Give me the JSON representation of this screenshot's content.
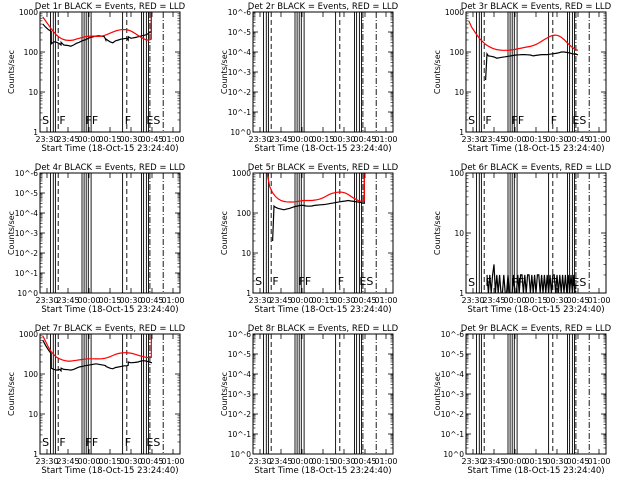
{
  "colors": {
    "events": "#000000",
    "lld": "#ff0000",
    "axes": "#000000"
  },
  "common": {
    "xlabel": "Start Time (18-Oct-15 23:24:40)",
    "ylabel": "Counts/sec",
    "xtick_labels": [
      "23:30",
      "23:45",
      "00:00",
      "00:15",
      "00:30",
      "00:45",
      "01:00"
    ],
    "xrange_min": [
      0,
      100
    ],
    "xtick_min": [
      5,
      20,
      35,
      50,
      65,
      80,
      95
    ],
    "flags": [
      "S",
      "F",
      "FF",
      "F",
      "ES"
    ]
  },
  "chart_data": [
    {
      "type": "line",
      "title": "Det 1r BLACK = Events, RED = LLD",
      "ytick_labels": [
        "1",
        "10",
        "100",
        "1000"
      ],
      "ylog": [
        0,
        3
      ],
      "flag_y": 3.0,
      "series": [
        {
          "name": "Events",
          "color": "#000000",
          "x": [
            2,
            4,
            6,
            8,
            8.1,
            10,
            12,
            14,
            15,
            15.1,
            17,
            20,
            22,
            24,
            26,
            28,
            30,
            32,
            34,
            36,
            38,
            40,
            42,
            44,
            46,
            47,
            47.1,
            50,
            52,
            54,
            56,
            58,
            60,
            62,
            63,
            63.1,
            65,
            68,
            70,
            72,
            74,
            76,
            78,
            79.5,
            79.6,
            80
          ],
          "y": [
            500,
            420,
            360,
            330,
            160,
            180,
            175,
            160,
            150,
            175,
            150,
            145,
            140,
            150,
            165,
            175,
            190,
            200,
            215,
            230,
            240,
            250,
            255,
            250,
            240,
            200,
            210,
            180,
            170,
            190,
            200,
            210,
            215,
            220,
            200,
            240,
            220,
            230,
            240,
            250,
            260,
            270,
            300,
            320,
            1000,
            1000
          ]
        },
        {
          "name": "LLD",
          "color": "#ff0000",
          "x": [
            2,
            4,
            6,
            8,
            10,
            12,
            14,
            16,
            18,
            20,
            22,
            24,
            26,
            28,
            30,
            32,
            34,
            36,
            38,
            40,
            42,
            44,
            46,
            48,
            50,
            52,
            54,
            56,
            58,
            60,
            62,
            64,
            66,
            68,
            70,
            72,
            74,
            76,
            78,
            79.5,
            79.6,
            80
          ],
          "y": [
            750,
            600,
            480,
            380,
            310,
            260,
            230,
            210,
            200,
            195,
            195,
            200,
            210,
            220,
            230,
            240,
            245,
            250,
            250,
            245,
            245,
            250,
            260,
            275,
            295,
            315,
            335,
            350,
            360,
            365,
            360,
            345,
            320,
            290,
            260,
            235,
            215,
            200,
            200,
            210,
            1000,
            1000
          ]
        }
      ]
    },
    {
      "type": "line",
      "title": "Det 2r BLACK = Events, RED = LLD",
      "ytick_labels": [
        "10^0",
        "10^-1",
        "10^-2",
        "10^-3",
        "10^-4",
        "10^-5",
        "10^-6"
      ],
      "ylog": [
        0,
        6
      ],
      "flag_y": 0.15,
      "series": []
    },
    {
      "type": "line",
      "title": "Det 3r BLACK = Events, RED = LLD",
      "ytick_labels": [
        "1",
        "10",
        "100",
        "1000"
      ],
      "ylog": [
        0,
        3
      ],
      "flag_y": 3.0,
      "series": [
        {
          "name": "Events",
          "color": "#000000",
          "x": [
            14,
            15,
            16,
            18,
            20,
            22,
            24,
            26,
            28,
            30,
            32,
            34,
            36,
            38,
            40,
            42,
            44,
            46,
            48,
            50,
            52,
            54,
            56,
            58,
            60,
            62,
            64,
            66,
            68,
            70,
            72,
            74,
            76,
            78,
            80
          ],
          "y": [
            20,
            90,
            80,
            78,
            75,
            70,
            72,
            74,
            76,
            78,
            80,
            82,
            84,
            85,
            86,
            86,
            85,
            84,
            80,
            82,
            84,
            86,
            86,
            86,
            88,
            90,
            92,
            95,
            100,
            100,
            98,
            95,
            90,
            88,
            85
          ]
        },
        {
          "name": "LLD",
          "color": "#ff0000",
          "x": [
            2,
            4,
            6,
            8,
            10,
            12,
            14,
            16,
            18,
            20,
            22,
            24,
            26,
            28,
            30,
            32,
            34,
            36,
            38,
            40,
            42,
            44,
            46,
            48,
            50,
            52,
            54,
            56,
            58,
            60,
            62,
            64,
            66,
            68,
            70,
            72,
            74,
            76,
            78,
            80
          ],
          "y": [
            600,
            420,
            330,
            260,
            210,
            180,
            155,
            140,
            128,
            120,
            115,
            112,
            110,
            110,
            110,
            112,
            115,
            118,
            122,
            126,
            130,
            134,
            138,
            145,
            155,
            168,
            185,
            205,
            225,
            245,
            260,
            265,
            255,
            235,
            205,
            175,
            150,
            130,
            115,
            110
          ]
        }
      ]
    },
    {
      "type": "line",
      "title": "Det 4r BLACK = Events, RED = LLD",
      "ytick_labels": [
        "10^0",
        "10^-1",
        "10^-2",
        "10^-3",
        "10^-4",
        "10^-5",
        "10^-6"
      ],
      "ylog": [
        0,
        6
      ],
      "flag_y": 0.15,
      "series": []
    },
    {
      "type": "line",
      "title": "Det 5r BLACK = Events, RED = LLD",
      "ytick_labels": [
        "1",
        "10",
        "100",
        "1000"
      ],
      "ylog": [
        0,
        3
      ],
      "flag_y": 3.0,
      "series": [
        {
          "name": "Events",
          "color": "#000000",
          "x": [
            14,
            15,
            16,
            18,
            20,
            22,
            24,
            26,
            28,
            30,
            32,
            34,
            36,
            38,
            40,
            42,
            44,
            46,
            48,
            50,
            52,
            54,
            56,
            58,
            60,
            62,
            64,
            66,
            68,
            70,
            72,
            74,
            76,
            78,
            79.5,
            79.6,
            80
          ],
          "y": [
            20,
            150,
            140,
            130,
            125,
            120,
            125,
            130,
            138,
            145,
            150,
            155,
            155,
            150,
            148,
            150,
            155,
            158,
            160,
            162,
            165,
            170,
            175,
            180,
            185,
            190,
            195,
            200,
            205,
            200,
            195,
            190,
            185,
            180,
            175,
            1000,
            1000
          ]
        },
        {
          "name": "LLD",
          "color": "#ff0000",
          "x": [
            10,
            12,
            14,
            16,
            18,
            20,
            22,
            24,
            26,
            28,
            30,
            32,
            34,
            36,
            38,
            40,
            42,
            44,
            46,
            48,
            50,
            52,
            54,
            56,
            58,
            60,
            62,
            64,
            66,
            68,
            70,
            72,
            74,
            76,
            78,
            79.5,
            79.6,
            80
          ],
          "y": [
            1000,
            450,
            320,
            260,
            225,
            205,
            195,
            190,
            188,
            188,
            190,
            195,
            200,
            205,
            205,
            205,
            205,
            210,
            215,
            225,
            240,
            260,
            285,
            305,
            320,
            330,
            335,
            330,
            315,
            290,
            260,
            235,
            215,
            200,
            195,
            200,
            1000,
            1000
          ]
        }
      ]
    },
    {
      "type": "line",
      "title": "Det 6r BLACK = Events, RED = LLD",
      "ytick_labels": [
        "1",
        "10",
        "100"
      ],
      "ylog": [
        0,
        2
      ],
      "flag_y": 2.0,
      "series": [
        {
          "name": "Events",
          "color": "#000000",
          "x": [
            15,
            16,
            17,
            18,
            19,
            20,
            21,
            22,
            23,
            24,
            25,
            26,
            27,
            28,
            29,
            30,
            31,
            32,
            33,
            34,
            35,
            36,
            37,
            38,
            39,
            40,
            41,
            42,
            43,
            44,
            45,
            46,
            47,
            48,
            49,
            50,
            51,
            52,
            53,
            54,
            55,
            56,
            57,
            58,
            59,
            60,
            61,
            62,
            63,
            64,
            65,
            66,
            67,
            68,
            69,
            70,
            71,
            72,
            73,
            74,
            75,
            76,
            77,
            78
          ],
          "y": [
            2,
            1,
            2,
            1,
            2,
            3,
            1,
            2,
            1,
            2,
            1,
            1,
            2,
            1,
            1,
            2,
            1,
            1,
            1,
            2,
            1,
            1,
            2,
            1,
            2,
            2,
            1,
            2,
            1,
            2,
            2,
            1,
            2,
            1,
            2,
            1,
            2,
            2,
            1,
            2,
            1,
            2,
            1,
            2,
            1,
            2,
            1,
            2,
            2,
            1,
            2,
            1,
            2,
            1,
            2,
            1,
            2,
            1,
            2,
            1,
            2,
            1,
            2,
            1
          ]
        }
      ]
    },
    {
      "type": "line",
      "title": "Det 7r BLACK = Events, RED = LLD",
      "ytick_labels": [
        "1",
        "10",
        "100",
        "1000"
      ],
      "ylog": [
        0,
        3
      ],
      "flag_y": 3.0,
      "series": [
        {
          "name": "Events",
          "color": "#000000",
          "x": [
            2,
            4,
            6,
            8,
            8.1,
            10,
            12,
            14,
            15,
            15.1,
            17,
            20,
            22,
            24,
            26,
            28,
            30,
            32,
            34,
            36,
            38,
            40,
            42,
            44,
            46,
            47,
            47.1,
            50,
            52,
            54,
            56,
            58,
            60,
            62,
            63,
            63.1,
            65,
            68,
            70,
            72,
            74,
            76,
            78,
            80
          ],
          "y": [
            700,
            520,
            400,
            320,
            140,
            130,
            125,
            130,
            120,
            140,
            130,
            128,
            125,
            130,
            140,
            150,
            155,
            160,
            165,
            170,
            175,
            180,
            175,
            170,
            165,
            160,
            155,
            140,
            135,
            145,
            150,
            155,
            160,
            160,
            165,
            200,
            190,
            195,
            200,
            210,
            215,
            210,
            200,
            190
          ]
        },
        {
          "name": "LLD",
          "color": "#ff0000",
          "x": [
            2,
            4,
            6,
            8,
            10,
            12,
            14,
            16,
            18,
            20,
            22,
            24,
            26,
            28,
            30,
            32,
            34,
            36,
            38,
            40,
            42,
            44,
            46,
            48,
            50,
            52,
            54,
            56,
            58,
            60,
            62,
            64,
            66,
            68,
            70,
            72,
            74,
            76,
            78,
            79.5,
            79.6,
            80
          ],
          "y": [
            900,
            650,
            470,
            360,
            300,
            260,
            240,
            225,
            215,
            210,
            210,
            215,
            220,
            225,
            230,
            235,
            240,
            240,
            240,
            238,
            238,
            240,
            245,
            255,
            270,
            290,
            310,
            325,
            335,
            340,
            340,
            335,
            325,
            310,
            295,
            280,
            270,
            260,
            255,
            260,
            1000,
            1000
          ]
        }
      ]
    },
    {
      "type": "line",
      "title": "Det 8r BLACK = Events, RED = LLD",
      "ytick_labels": [
        "10^0",
        "10^-1",
        "10^-2",
        "10^-3",
        "10^-4",
        "10^-5",
        "10^-6"
      ],
      "ylog": [
        0,
        6
      ],
      "flag_y": 0.15,
      "series": []
    },
    {
      "type": "line",
      "title": "Det 9r BLACK = Events, RED = LLD",
      "ytick_labels": [
        "10^0",
        "10^-1",
        "10^-2",
        "10^-3",
        "10^-4",
        "10^-5",
        "10^-6"
      ],
      "ylog": [
        0,
        6
      ],
      "flag_y": 0.15,
      "series": []
    }
  ]
}
